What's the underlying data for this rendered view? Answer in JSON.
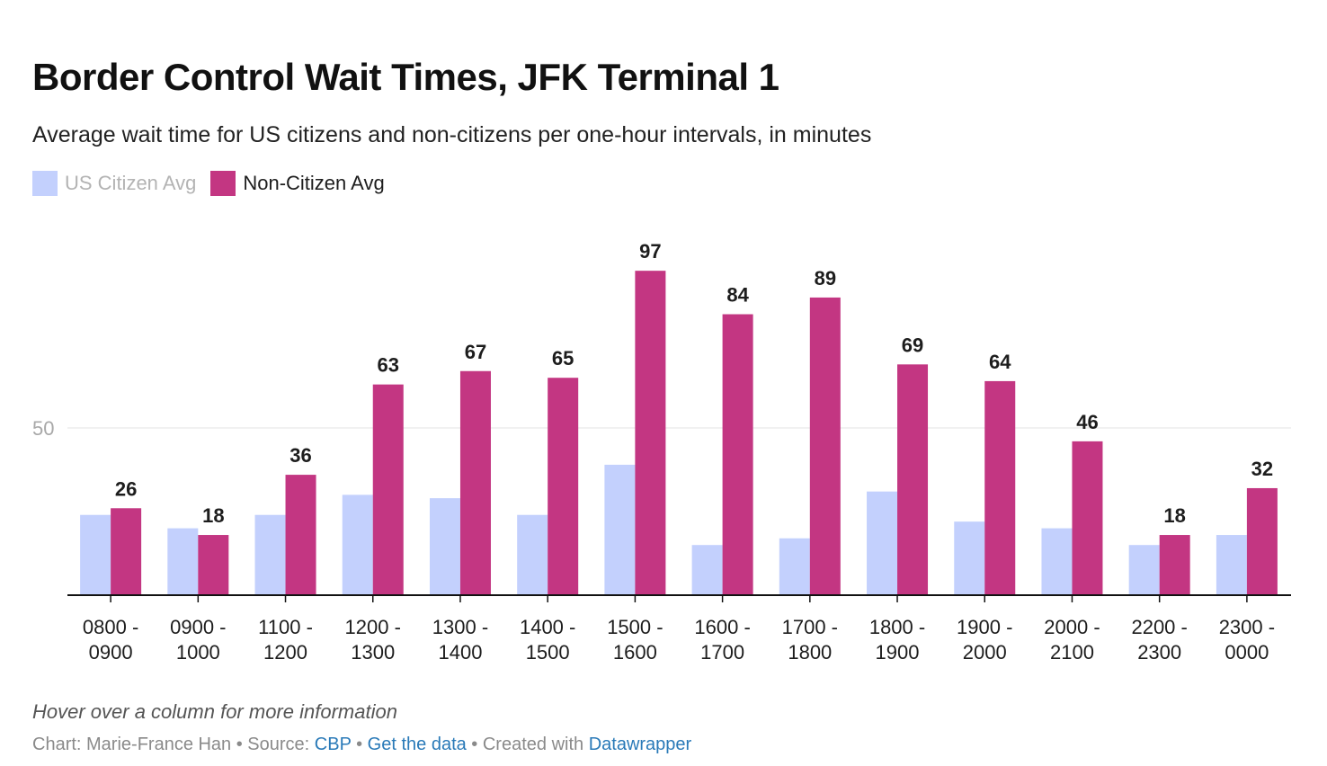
{
  "title": "Border Control Wait Times, JFK Terminal 1",
  "subtitle": "Average wait time for US citizens and non-citizens per one-hour intervals, in minutes",
  "hint": "Hover over a column for more information",
  "footer": {
    "chart_prefix": "Chart: Marie-France Han • Source: ",
    "source_link": "CBP",
    "sep1": " • ",
    "data_link": "Get the data",
    "sep2": " • Created with ",
    "tool_link": "Datawrapper"
  },
  "colors": {
    "us": "#c3d0fd",
    "non": "#c33682",
    "axis": "#111111",
    "grid": "#e3e3e3",
    "tick_label": "#a8a8a8"
  },
  "chart_data": {
    "type": "bar",
    "categories": [
      "0800 -\n0900",
      "0900 -\n1000",
      "1100 -\n1200",
      "1200 -\n1300",
      "1300 -\n1400",
      "1400 -\n1500",
      "1500 -\n1600",
      "1600 -\n1700",
      "1700 -\n1800",
      "1800 -\n1900",
      "1900 -\n2000",
      "2000 -\n2100",
      "2200 -\n2300",
      "2300 -\n0000"
    ],
    "series": [
      {
        "name": "US Citizen Avg",
        "values": [
          24,
          20,
          24,
          30,
          29,
          24,
          39,
          15,
          17,
          31,
          22,
          20,
          15,
          18
        ],
        "show_labels": false
      },
      {
        "name": "Non-Citizen Avg",
        "values": [
          26,
          18,
          36,
          63,
          67,
          65,
          97,
          84,
          89,
          69,
          64,
          46,
          18,
          32
        ],
        "show_labels": true
      }
    ],
    "yticks": [
      50
    ],
    "ylim": [
      0,
      100
    ],
    "grid": true,
    "legend": "top-left"
  }
}
